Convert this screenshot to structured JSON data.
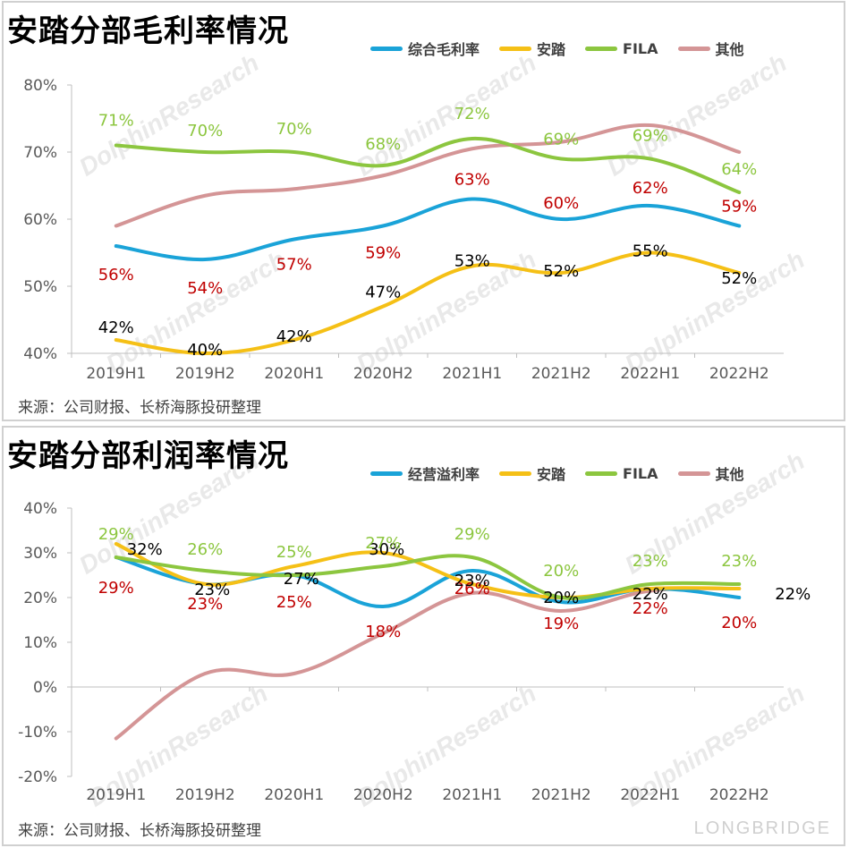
{
  "colors": {
    "blue": "#1aa3d8",
    "orange": "#f5c016",
    "green": "#8cc63f",
    "pink": "#d49596",
    "label_red": "#c00000",
    "label_black": "#000000",
    "label_green": "#8cc63f"
  },
  "watermark": "DolphinResearch",
  "brand": "LONGBRIDGE",
  "chart_data": [
    {
      "type": "line",
      "title": "安踏分部毛利率情况",
      "categories": [
        "2019H1",
        "2019H2",
        "2020H1",
        "2020H2",
        "2021H1",
        "2021H2",
        "2022H1",
        "2022H2"
      ],
      "y_ticks": [
        "80%",
        "70%",
        "60%",
        "50%",
        "40%"
      ],
      "ylim": [
        40,
        80
      ],
      "legend_position": "top-right",
      "grid": false,
      "source": "来源：公司财报、长桥海豚投研整理",
      "series": [
        {
          "name": "综合毛利率",
          "color": "#1aa3d8",
          "values": [
            56,
            54,
            57,
            59,
            63,
            60,
            62,
            59
          ],
          "label_color": "#c00000",
          "labels": [
            "56%",
            "54%",
            "57%",
            "59%",
            "63%",
            "60%",
            "62%",
            "59%"
          ]
        },
        {
          "name": "安踏",
          "color": "#f5c016",
          "values": [
            42,
            40,
            42,
            47,
            53,
            52,
            55,
            52
          ],
          "label_color": "#000000",
          "labels": [
            "42%",
            "40%",
            "42%",
            "47%",
            "53%",
            "52%",
            "55%",
            "52%"
          ]
        },
        {
          "name": "FILA",
          "color": "#8cc63f",
          "values": [
            71,
            70,
            70,
            68,
            72,
            69,
            69,
            64
          ],
          "label_color": "#8cc63f",
          "labels": [
            "71%",
            "70%",
            "70%",
            "68%",
            "72%",
            "69%",
            "69%",
            "64%"
          ]
        },
        {
          "name": "其他",
          "color": "#d49596",
          "values": [
            59,
            63.5,
            64.5,
            66.5,
            70.5,
            71.5,
            74,
            70
          ],
          "label_color": null,
          "labels": []
        }
      ]
    },
    {
      "type": "line",
      "title": "安踏分部利润率情况",
      "categories": [
        "2019H1",
        "2019H2",
        "2020H1",
        "2020H2",
        "2021H1",
        "2021H2",
        "2022H1",
        "2022H2"
      ],
      "y_ticks": [
        "40%",
        "30%",
        "20%",
        "10%",
        "0%",
        "-10%",
        "-20%"
      ],
      "ylim": [
        -20,
        40
      ],
      "legend_position": "top-right",
      "grid": false,
      "source": "来源：公司财报、长桥海豚投研整理",
      "series": [
        {
          "name": "经营溢利率",
          "color": "#1aa3d8",
          "values": [
            29,
            23,
            25,
            18,
            26,
            19,
            22,
            20
          ],
          "label_color": "#c00000",
          "labels": [
            "29%",
            "23%",
            "25%",
            "18%",
            "26%",
            "19%",
            "22%",
            "20%"
          ]
        },
        {
          "name": "安踏",
          "color": "#f5c016",
          "values": [
            32,
            23,
            27,
            30,
            23,
            20,
            22,
            22
          ],
          "label_color": "#000000",
          "labels": [
            "32%",
            "23%",
            "27%",
            "30%",
            "23%",
            "20%",
            "22%",
            "22%"
          ]
        },
        {
          "name": "FILA",
          "color": "#8cc63f",
          "values": [
            29,
            26,
            25,
            27,
            29,
            20,
            23,
            23
          ],
          "label_color": "#8cc63f",
          "labels": [
            "29%",
            "26%",
            "25%",
            "27%",
            "29%",
            "20%",
            "23%",
            "23%"
          ]
        },
        {
          "name": "其他",
          "color": "#d49596",
          "values": [
            -11.5,
            3,
            3,
            12,
            21,
            17,
            21.5,
            22
          ],
          "label_color": null,
          "labels": []
        }
      ]
    }
  ]
}
